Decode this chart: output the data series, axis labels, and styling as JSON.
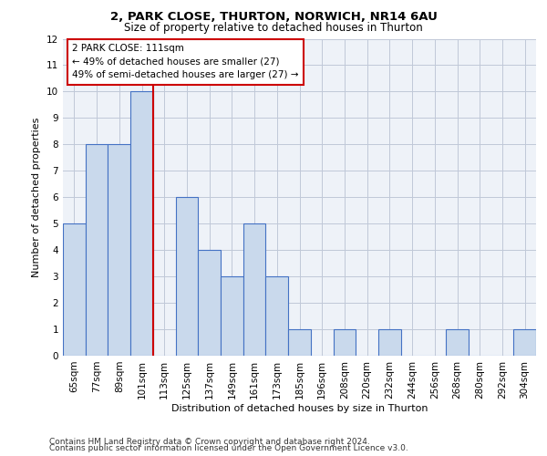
{
  "title1": "2, PARK CLOSE, THURTON, NORWICH, NR14 6AU",
  "title2": "Size of property relative to detached houses in Thurton",
  "xlabel": "Distribution of detached houses by size in Thurton",
  "ylabel": "Number of detached properties",
  "footer1": "Contains HM Land Registry data © Crown copyright and database right 2024.",
  "footer2": "Contains public sector information licensed under the Open Government Licence v3.0.",
  "annotation_line1": "2 PARK CLOSE: 111sqm",
  "annotation_line2": "← 49% of detached houses are smaller (27)",
  "annotation_line3": "49% of semi-detached houses are larger (27) →",
  "categories": [
    "65sqm",
    "77sqm",
    "89sqm",
    "101sqm",
    "113sqm",
    "125sqm",
    "137sqm",
    "149sqm",
    "161sqm",
    "173sqm",
    "185sqm",
    "196sqm",
    "208sqm",
    "220sqm",
    "232sqm",
    "244sqm",
    "256sqm",
    "268sqm",
    "280sqm",
    "292sqm",
    "304sqm"
  ],
  "values": [
    5,
    8,
    8,
    10,
    0,
    6,
    4,
    3,
    5,
    3,
    1,
    0,
    1,
    0,
    1,
    0,
    0,
    1,
    0,
    0,
    1
  ],
  "bar_color": "#c9d9ec",
  "bar_edge_color": "#4472c4",
  "bar_linewidth": 0.8,
  "redline_color": "#cc0000",
  "redline_linewidth": 1.5,
  "box_edge_color": "#cc0000",
  "box_face_color": "#ffffff",
  "ylim": [
    0,
    12
  ],
  "yticks": [
    0,
    1,
    2,
    3,
    4,
    5,
    6,
    7,
    8,
    9,
    10,
    11,
    12
  ],
  "grid_color": "#c0c8d8",
  "bg_color": "#eef2f8",
  "title1_fontsize": 9.5,
  "title2_fontsize": 8.5,
  "xlabel_fontsize": 8,
  "ylabel_fontsize": 8,
  "tick_fontsize": 7.5,
  "annotation_fontsize": 7.5,
  "footer_fontsize": 6.5,
  "redline_x": 3.5
}
